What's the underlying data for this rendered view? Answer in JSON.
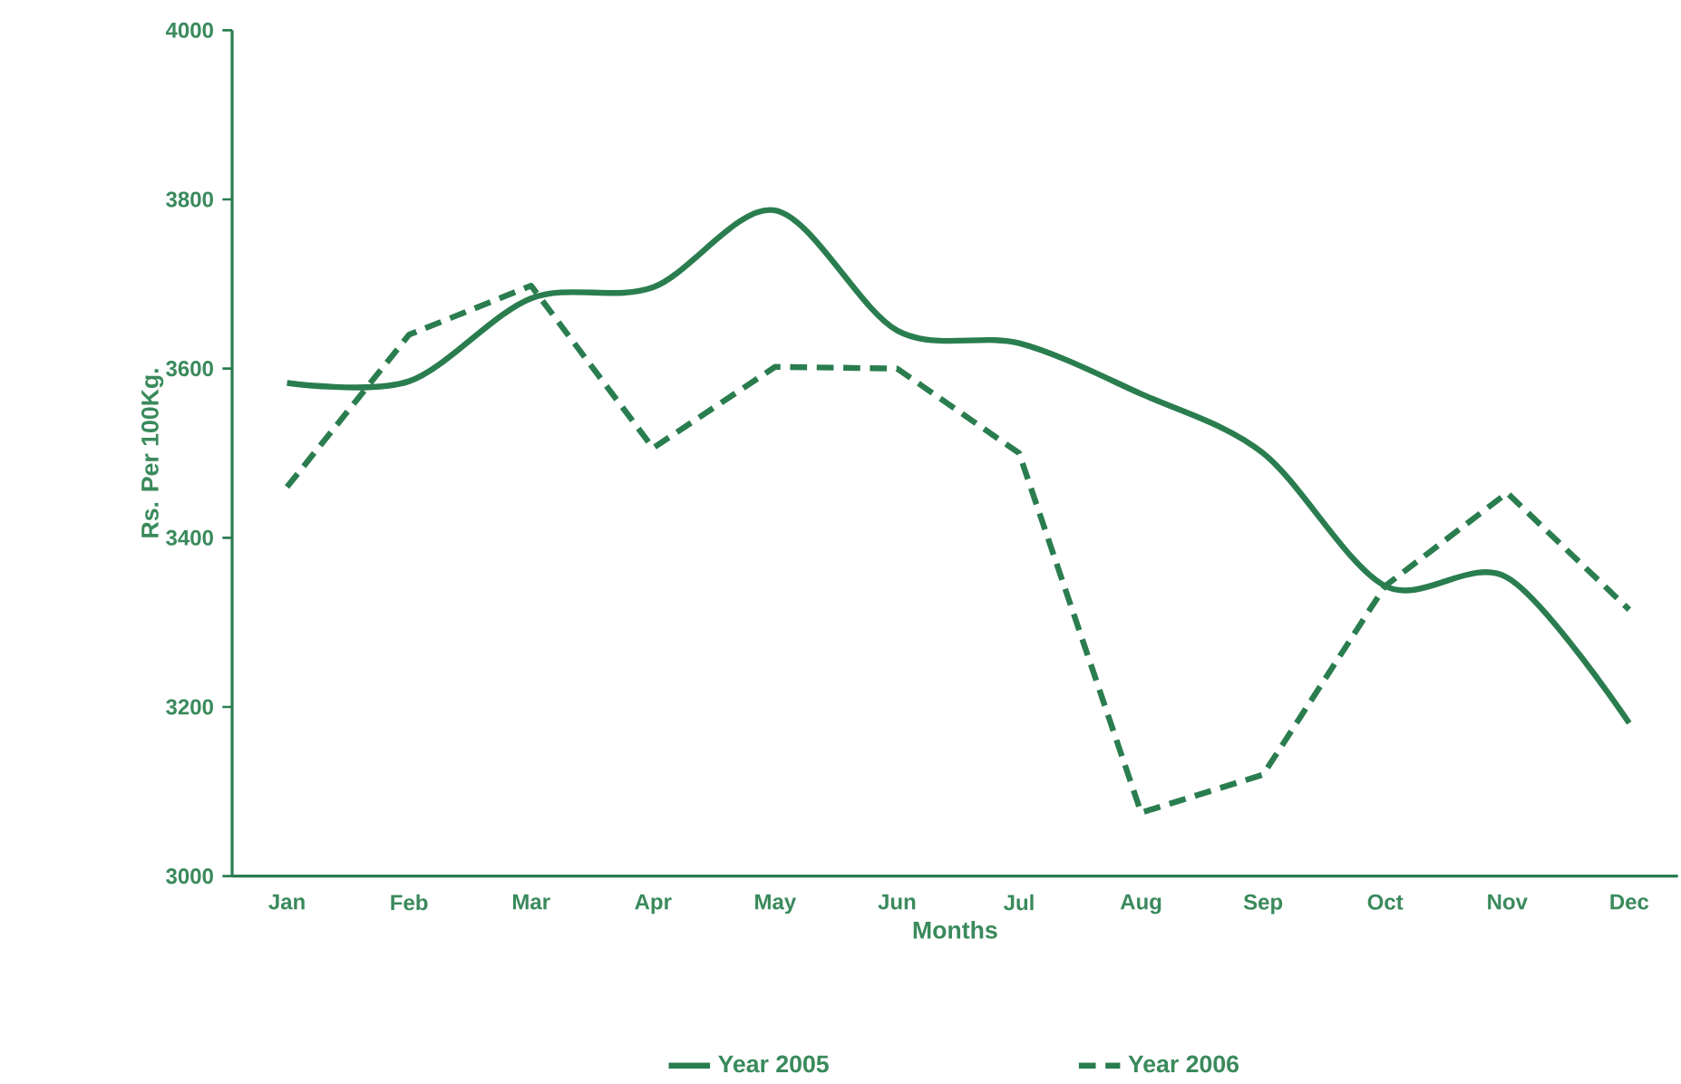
{
  "chart_data": {
    "type": "line",
    "xlabel": "Months",
    "ylabel": "Rs. Per 100Kg.",
    "categories": [
      "Jan",
      "Feb",
      "Mar",
      "Apr",
      "May",
      "Jun",
      "Jul",
      "Aug",
      "Sep",
      "Oct",
      "Nov",
      "Dec"
    ],
    "series": [
      {
        "name": "Year 2005",
        "color": "#2a7d4f",
        "line_style": "solid",
        "values": [
          3583,
          3585,
          3683,
          3696,
          3787,
          3645,
          3630,
          3570,
          3500,
          3343,
          3353,
          3181
        ]
      },
      {
        "name": "Year 2006",
        "color": "#2a7d4f",
        "line_style": "dashed",
        "values": [
          3460,
          3640,
          3698,
          3506,
          3602,
          3600,
          3500,
          3075,
          3120,
          3343,
          3453,
          3315
        ]
      }
    ],
    "ylim": [
      3000,
      4000
    ],
    "yticks": [
      3000,
      3200,
      3400,
      3600,
      3800,
      4000
    ],
    "grid": false,
    "legend": "bottom",
    "marker": "none"
  }
}
